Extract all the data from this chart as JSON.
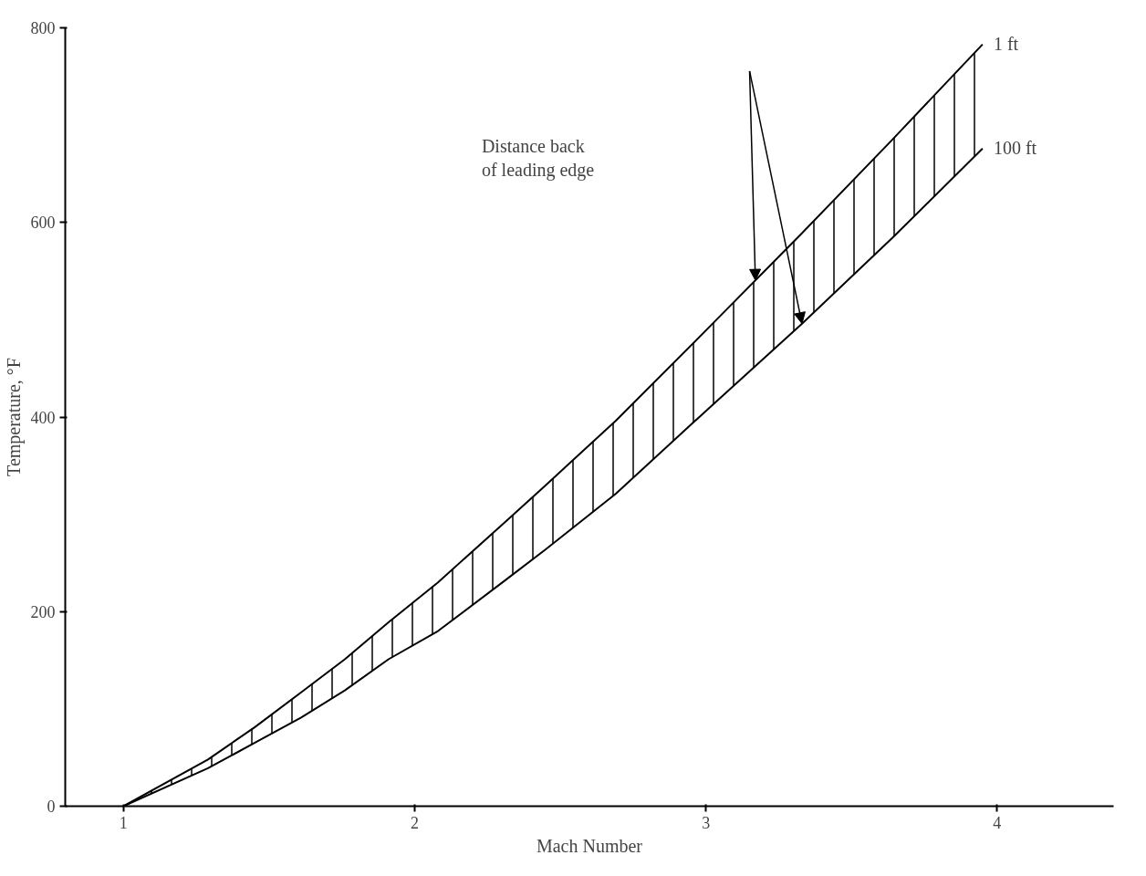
{
  "chart_data": {
    "type": "line",
    "xlabel": "Mach Number",
    "ylabel": "Temperature, °F",
    "x": [
      1,
      1.29,
      1.45,
      1.61,
      1.76,
      1.91,
      2.08,
      2.31,
      2.45,
      2.69,
      3.01,
      3.33,
      3.64,
      3.95
    ],
    "series": [
      {
        "name": "1 ft",
        "color": "#000000",
        "values": [
          0,
          48,
          81,
          117,
          151,
          189,
          230,
          292,
          330,
          396,
          492,
          589,
          685,
          783
        ],
        "lower": [
          0,
          39,
          65,
          91,
          119,
          151,
          180,
          232,
          264,
          321,
          409,
          496,
          584,
          676
        ],
        "upper": [
          0,
          48,
          81,
          117,
          151,
          189,
          230,
          292,
          330,
          396,
          492,
          589,
          685,
          783
        ]
      },
      {
        "name": "100 ft",
        "color": "#000000",
        "values": [
          0,
          39,
          65,
          91,
          119,
          151,
          180,
          232,
          264,
          321,
          409,
          496,
          584,
          676
        ]
      }
    ],
    "annotations": [
      "Distance back\nof leading edge"
    ],
    "xlim": [
      0.8,
      4.4
    ],
    "ylim": [
      0,
      800
    ],
    "xticks": [
      1,
      2,
      3,
      4
    ],
    "yticks": [
      0,
      200,
      400,
      600,
      800
    ],
    "grid": false,
    "marker": "none",
    "line_style": "solid"
  }
}
